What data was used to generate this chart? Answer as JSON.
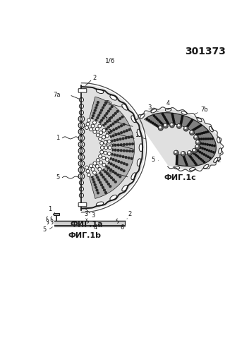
{
  "patent_number": "301373",
  "page_label": "1/6",
  "fig1a_label": "ФИГ.1а",
  "fig1b_label": "ФИГ.1b",
  "fig1c_label": "ФИГ.1с",
  "bg_color": "#ffffff",
  "line_color": "#1a1a1a",
  "gray_light": "#e0e0e0",
  "gray_mid": "#b0b0b0",
  "gray_dark": "#707070",
  "gray_crescent": "#888888",
  "dot_color": "#2a2a2a"
}
